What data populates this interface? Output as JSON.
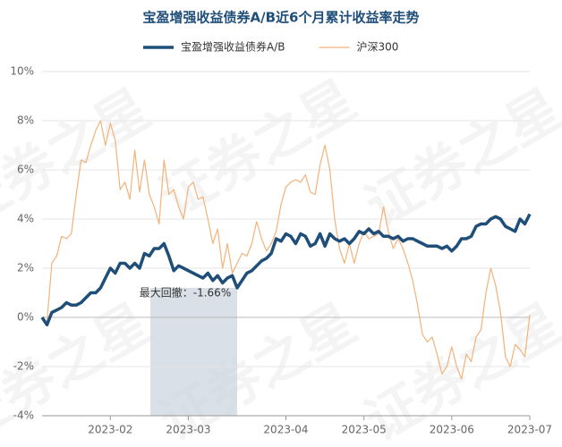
{
  "chart_data": {
    "type": "line",
    "title": "宝盈增强收益债券A/B近6个月累计收益率走势",
    "annotation": "最大回撤：-1.66%",
    "watermark": "证券之星",
    "categories": [
      null,
      null,
      null,
      null,
      null,
      null,
      null,
      null,
      null,
      null,
      null,
      null,
      null,
      null,
      "2023-02",
      null,
      null,
      null,
      null,
      null,
      null,
      null,
      null,
      null,
      null,
      null,
      null,
      null,
      null,
      null,
      "2023-03",
      null,
      null,
      null,
      null,
      null,
      null,
      null,
      null,
      null,
      null,
      null,
      null,
      null,
      null,
      null,
      null,
      null,
      null,
      null,
      "2023-04",
      null,
      null,
      null,
      null,
      null,
      null,
      null,
      null,
      null,
      null,
      null,
      null,
      null,
      null,
      null,
      "2023-05",
      null,
      null,
      null,
      null,
      null,
      null,
      null,
      null,
      null,
      null,
      null,
      null,
      null,
      null,
      null,
      null,
      null,
      "2023-06",
      null,
      null,
      null,
      null,
      null,
      null,
      null,
      null,
      null,
      null,
      null,
      null,
      null,
      null,
      null,
      "2023-07"
    ],
    "series": [
      {
        "name": "宝盈增强收益债券A/B",
        "color": "#1f4e79",
        "width": 3.5,
        "values": [
          0,
          -0.3,
          0.2,
          0.3,
          0.4,
          0.6,
          0.5,
          0.5,
          0.6,
          0.8,
          1.0,
          1.0,
          1.2,
          1.6,
          2.0,
          1.8,
          2.2,
          2.2,
          2.0,
          2.2,
          2.0,
          2.6,
          2.5,
          2.8,
          2.8,
          3.0,
          2.5,
          1.9,
          2.1,
          2.0,
          1.9,
          1.8,
          1.7,
          1.6,
          1.8,
          1.5,
          1.7,
          1.4,
          1.6,
          1.7,
          1.2,
          1.5,
          1.8,
          1.9,
          2.1,
          2.3,
          2.4,
          2.6,
          3.2,
          3.1,
          3.4,
          3.3,
          3.0,
          3.4,
          3.3,
          2.9,
          3.0,
          3.4,
          2.9,
          3.4,
          3.2,
          3.1,
          3.2,
          3.0,
          3.2,
          3.5,
          3.4,
          3.6,
          3.4,
          3.5,
          3.3,
          3.3,
          3.2,
          3.3,
          3.1,
          3.2,
          3.2,
          3.1,
          3.0,
          2.9,
          2.9,
          2.9,
          2.8,
          2.9,
          2.7,
          2.9,
          3.2,
          3.2,
          3.3,
          3.7,
          3.8,
          3.8,
          4.0,
          4.1,
          4.0,
          3.7,
          3.6,
          3.5,
          4.0,
          3.8,
          4.2
        ]
      },
      {
        "name": "沪深300",
        "color": "#f2b27a",
        "width": 1.2,
        "values": [
          0,
          -0.2,
          2.2,
          2.5,
          3.3,
          3.2,
          3.4,
          5.0,
          6.4,
          6.3,
          7.0,
          7.6,
          8.0,
          7.0,
          7.9,
          7.2,
          5.2,
          5.5,
          4.8,
          6.8,
          5.1,
          6.4,
          5.0,
          4.5,
          3.8,
          6.4,
          5.0,
          5.2,
          4.5,
          4.0,
          5.3,
          5.5,
          4.8,
          4.9,
          4.0,
          3.0,
          3.6,
          2.0,
          3.0,
          1.8,
          2.2,
          2.6,
          2.5,
          3.0,
          3.9,
          3.2,
          2.7,
          3.0,
          3.5,
          4.6,
          5.3,
          5.5,
          5.6,
          5.5,
          5.8,
          5.1,
          5.0,
          6.2,
          7.0,
          6.0,
          4.0,
          2.8,
          2.2,
          3.0,
          2.2,
          3.0,
          3.5,
          3.2,
          3.3,
          3.4,
          4.5,
          3.5,
          2.8,
          3.2,
          2.8,
          2.2,
          1.5,
          0.5,
          -0.7,
          -1.0,
          -0.8,
          -1.5,
          -2.3,
          -2.0,
          -1.2,
          -2.0,
          -2.5,
          -1.5,
          -1.8,
          -0.8,
          -0.5,
          1.0,
          2.0,
          1.3,
          0.2,
          -1.6,
          -2.0,
          -1.1,
          -1.3,
          -1.6,
          0.1
        ]
      }
    ],
    "ylim": [
      -4,
      10
    ],
    "yticks": [
      {
        "value": -4,
        "label": "-4%"
      },
      {
        "value": -2,
        "label": "-2%"
      },
      {
        "value": 0,
        "label": "0%"
      },
      {
        "value": 2,
        "label": "2%"
      },
      {
        "value": 4,
        "label": "4%"
      },
      {
        "value": 6,
        "label": "6%"
      },
      {
        "value": 8,
        "label": "8%"
      },
      {
        "value": 10,
        "label": "10%"
      }
    ],
    "grid": true,
    "legend": "top"
  }
}
